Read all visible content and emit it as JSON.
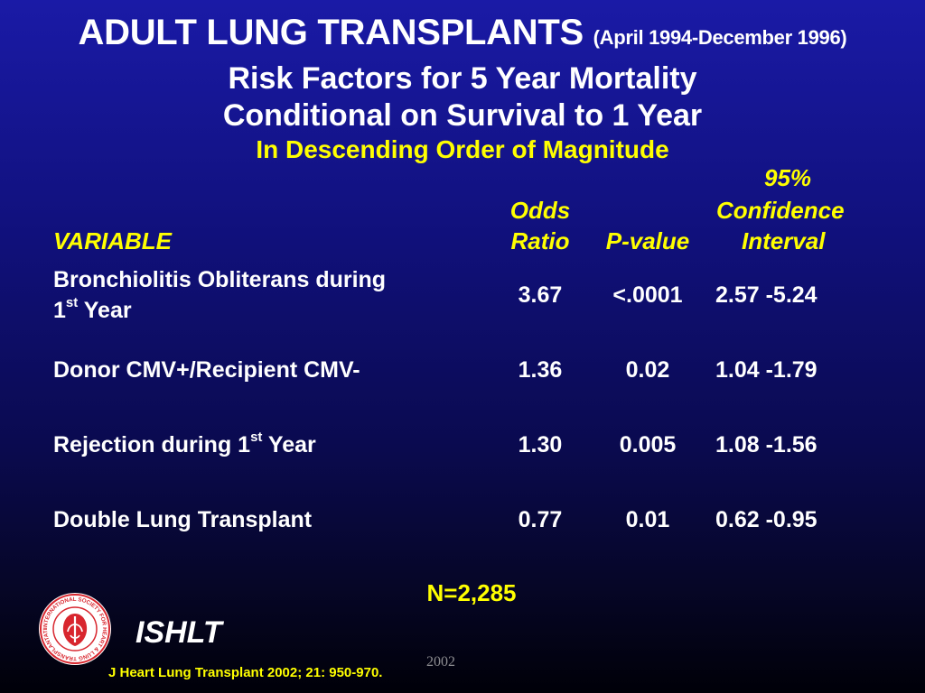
{
  "header": {
    "title_main": "ADULT LUNG TRANSPLANTS",
    "title_dates": "(April 1994-December 1996)",
    "subtitle_1": "Risk Factors for 5 Year Mortality",
    "subtitle_2": "Conditional on Survival to 1 Year",
    "subtitle_3": "In Descending Order of Magnitude"
  },
  "table": {
    "columns": {
      "variable": "VARIABLE",
      "odds_ratio_1": "Odds",
      "odds_ratio_2": "Ratio",
      "p_value": "P-value",
      "ci_1": "95%",
      "ci_2": "Confidence",
      "ci_3": "Interval"
    },
    "rows": [
      {
        "variable_line1": "Bronchiolitis Obliterans during",
        "variable_pre": "1",
        "variable_sup": "st",
        "variable_post": " Year",
        "odds_ratio": "3.67",
        "p_value": "<.0001",
        "ci": "2.57 -5.24"
      },
      {
        "variable": "Donor CMV+/Recipient CMV-",
        "odds_ratio": "1.36",
        "p_value": "0.02",
        "ci": "1.04 -1.79"
      },
      {
        "variable_pre": "Rejection during 1",
        "variable_sup": "st",
        "variable_post": " Year",
        "odds_ratio": "1.30",
        "p_value": "0.005",
        "ci": "1.08 -1.56"
      },
      {
        "variable": "Double Lung Transplant",
        "odds_ratio": "0.77",
        "p_value": "0.01",
        "ci": "0.62 -0.95"
      }
    ]
  },
  "footer": {
    "n_total": "N=2,285",
    "org": "ISHLT",
    "citation": "J Heart Lung Transplant 2002; 21: 950-970.",
    "year_mark": "2002",
    "logo_ring_text": "INTERNATIONAL SOCIETY FOR HEART & LUNG TRANSPLANTATION"
  },
  "colors": {
    "background_top": "#1a1aa6",
    "background_bottom": "#000008",
    "accent": "#ffff00",
    "text": "#ffffff",
    "logo_red": "#d8262e"
  },
  "icons": {
    "logo": "ishlt-logo-icon"
  }
}
